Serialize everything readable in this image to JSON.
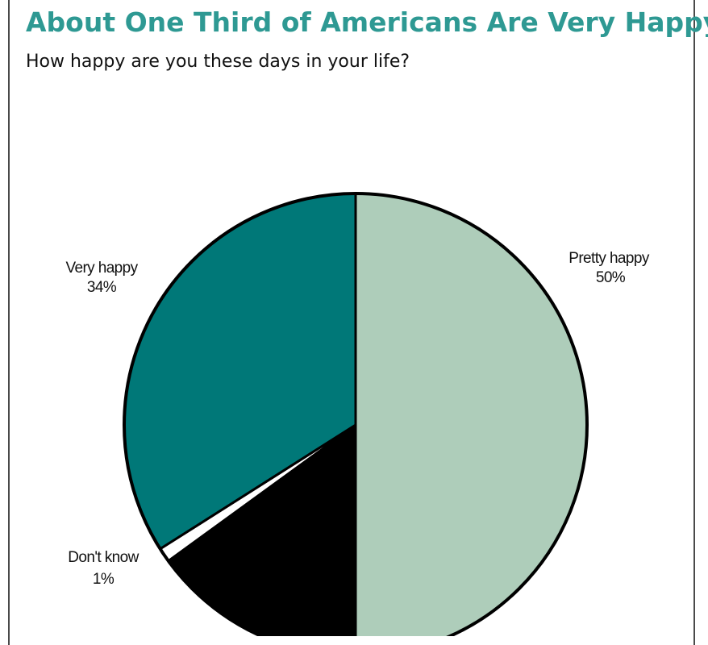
{
  "chart_data": {
    "type": "pie",
    "title": "About One Third of Americans Are Very Happy",
    "subtitle": "How happy are you these days in your life?",
    "slices": [
      {
        "label": "Pretty happy",
        "value": 50,
        "value_label": "50%",
        "color": "#aecdba"
      },
      {
        "label": "",
        "value": 15,
        "value_label": "",
        "color": "#000000"
      },
      {
        "label": "Don't know",
        "value": 1,
        "value_label": "1%",
        "color": "#ffffff"
      },
      {
        "label": "Very happy",
        "value": 34,
        "value_label": "34%",
        "color": "#007878"
      }
    ]
  },
  "colors": {
    "title": "#2e9993",
    "outline": "#000000"
  }
}
